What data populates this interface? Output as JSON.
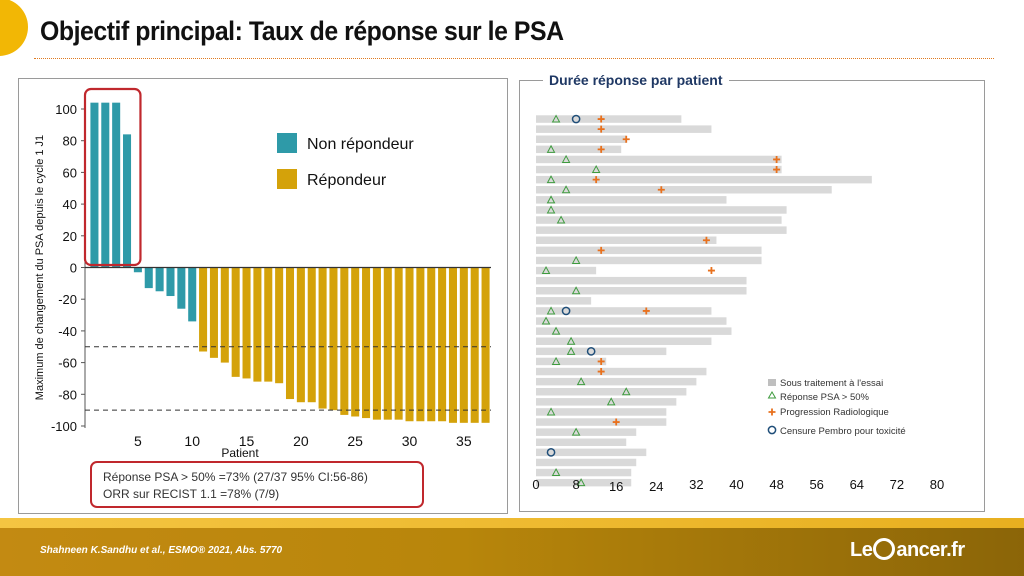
{
  "page": {
    "title": "Objectif principal: Taux de réponse sur le PSA",
    "citation": "Shahneen K.Sandhu et al., ESMO® 2021, Abs. 5770",
    "logo_left": "Le",
    "logo_right": "ancer.fr"
  },
  "colors": {
    "non_responder": "#2E9AA8",
    "responder": "#D4A20A",
    "accent_orange": "#E07A1F",
    "box_red": "#C0282D",
    "bar_gray": "#D9D9D9",
    "triangle": "#3E9B3E",
    "plus": "#E8711E",
    "circle": "#1F4E79"
  },
  "waterfall": {
    "ylabel": "Maximum de changement du PSA depuis le cycle 1 J1",
    "xlabel": "Patient",
    "legend": [
      "Non répondeur",
      "Répondeur"
    ],
    "summary_line1": "Réponse PSA > 50% =73% (27/37 95% CI:56-86)",
    "summary_line2": "ORR sur RECIST 1.1 =78% (7/9)"
  },
  "duration": {
    "title": "Durée réponse par patient",
    "legend": [
      "Sous traitement à l'essai",
      "Réponse PSA > 50%",
      "Progression Radiologique",
      "Censure Pembro pour toxicité"
    ]
  },
  "chart_data": [
    {
      "type": "bar",
      "title": "",
      "xlabel": "Patient",
      "ylabel": "Maximum de changement du PSA depuis le cycle 1 J1",
      "ylim": [
        -100,
        100
      ],
      "yticks": [
        100,
        80,
        60,
        40,
        20,
        0,
        -20,
        -40,
        -60,
        -80,
        -100
      ],
      "xticks": [
        5,
        10,
        15,
        20,
        25,
        30,
        35
      ],
      "x": [
        1,
        2,
        3,
        4,
        5,
        6,
        7,
        8,
        9,
        10,
        11,
        12,
        13,
        14,
        15,
        16,
        17,
        18,
        19,
        20,
        21,
        22,
        23,
        24,
        25,
        26,
        27,
        28,
        29,
        30,
        31,
        32,
        33,
        34,
        35,
        36,
        37
      ],
      "values": [
        104,
        104,
        104,
        84,
        -3,
        -13,
        -15,
        -18,
        -26,
        -34,
        -53,
        -57,
        -60,
        -69,
        -70,
        -72,
        -72,
        -73,
        -83,
        -85,
        -85,
        -89,
        -90,
        -93,
        -94,
        -95,
        -96,
        -96,
        -96,
        -97,
        -97,
        -97,
        -97,
        -98,
        -98,
        -98,
        -98
      ],
      "groups": [
        "Non répondeur",
        "Non répondeur",
        "Non répondeur",
        "Non répondeur",
        "Non répondeur",
        "Non répondeur",
        "Non répondeur",
        "Non répondeur",
        "Non répondeur",
        "Non répondeur",
        "Répondeur",
        "Répondeur",
        "Répondeur",
        "Répondeur",
        "Répondeur",
        "Répondeur",
        "Répondeur",
        "Répondeur",
        "Répondeur",
        "Répondeur",
        "Répondeur",
        "Répondeur",
        "Répondeur",
        "Répondeur",
        "Répondeur",
        "Répondeur",
        "Répondeur",
        "Répondeur",
        "Répondeur",
        "Répondeur",
        "Répondeur",
        "Répondeur",
        "Répondeur",
        "Répondeur",
        "Répondeur",
        "Répondeur",
        "Répondeur"
      ],
      "reference_lines": [
        -50,
        -90
      ],
      "legend": [
        "Non répondeur",
        "Répondeur"
      ]
    },
    {
      "type": "bar",
      "orientation": "horizontal",
      "title": "Durée réponse par patient",
      "xlim": [
        0,
        80
      ],
      "xticks": [
        0,
        8,
        16,
        24,
        32,
        40,
        48,
        56,
        64,
        72,
        80
      ],
      "legend": [
        "Sous traitement à l'essai",
        "Réponse PSA > 50%",
        "Progression Radiologique",
        "Censure Pembro pour toxicité"
      ],
      "durations": [
        29,
        35,
        18,
        17,
        49,
        49,
        67,
        59,
        38,
        50,
        49,
        50,
        36,
        45,
        45,
        12,
        42,
        42,
        11,
        35,
        38,
        39,
        35,
        26,
        14,
        34,
        32,
        30,
        28,
        26,
        26,
        20,
        18,
        22,
        20,
        19,
        19
      ],
      "psa_response": [
        4,
        null,
        null,
        3,
        6,
        12,
        3,
        6,
        3,
        3,
        5,
        null,
        null,
        null,
        8,
        2,
        null,
        8,
        null,
        3,
        2,
        4,
        7,
        7,
        4,
        null,
        9,
        18,
        15,
        3,
        null,
        8,
        null,
        null,
        null,
        4,
        9
      ],
      "progression": [
        13,
        13,
        18,
        13,
        48,
        48,
        12,
        25,
        null,
        null,
        null,
        null,
        34,
        13,
        null,
        35,
        null,
        null,
        null,
        22,
        null,
        null,
        null,
        null,
        13,
        13,
        null,
        null,
        null,
        null,
        16,
        null,
        null,
        null,
        null,
        null,
        null
      ],
      "censure": [
        8,
        null,
        null,
        null,
        null,
        null,
        null,
        null,
        null,
        null,
        null,
        null,
        null,
        null,
        null,
        null,
        null,
        null,
        null,
        6,
        null,
        null,
        null,
        11,
        null,
        null,
        null,
        null,
        null,
        null,
        null,
        null,
        null,
        3,
        null,
        null,
        null
      ]
    }
  ]
}
